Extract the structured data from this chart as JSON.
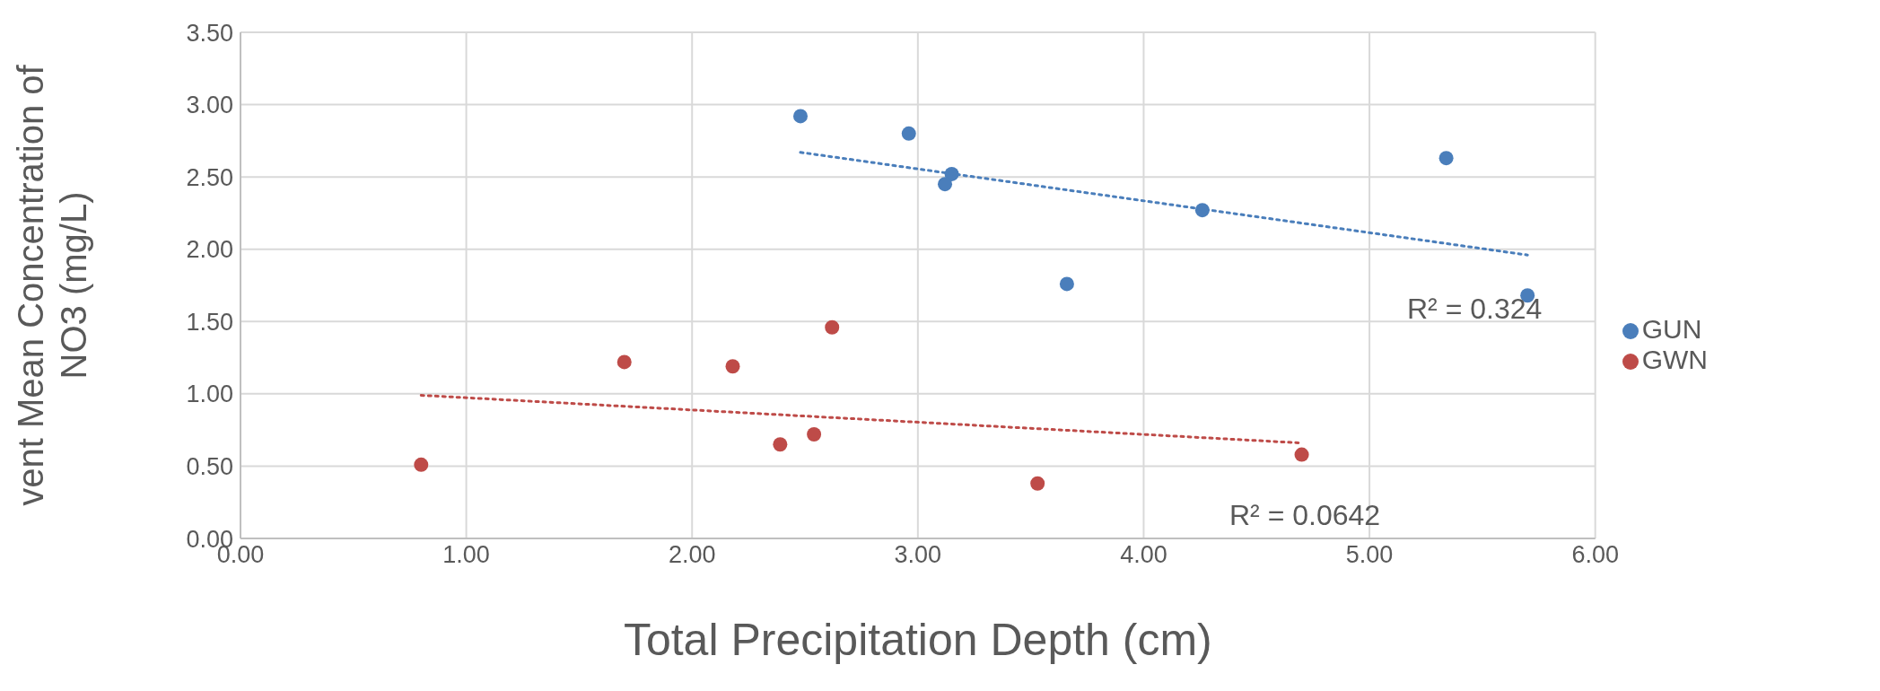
{
  "chart_data": {
    "type": "scatter",
    "xlabel": "Total Precipitation Depth (cm)",
    "ylabel": "vent Mean Concentration of NO3 (mg/L)",
    "xlim": [
      0,
      6
    ],
    "xticks": [
      {
        "value": 0,
        "label": "0.00"
      },
      {
        "value": 1,
        "label": "1.00"
      },
      {
        "value": 2,
        "label": "2.00"
      },
      {
        "value": 3,
        "label": "3.00"
      },
      {
        "value": 4,
        "label": "4.00"
      },
      {
        "value": 5,
        "label": "5.00"
      },
      {
        "value": 6,
        "label": "6.00"
      }
    ],
    "ylim": [
      0,
      3.5
    ],
    "yticks": [
      {
        "value": 0,
        "label": "0.00"
      },
      {
        "value": 0.5,
        "label": "0.50"
      },
      {
        "value": 1,
        "label": "1.00"
      },
      {
        "value": 1.5,
        "label": "1.50"
      },
      {
        "value": 2,
        "label": "2.00"
      },
      {
        "value": 2.5,
        "label": "2.50"
      },
      {
        "value": 3,
        "label": "3.00"
      },
      {
        "value": 3.5,
        "label": "3.50"
      }
    ],
    "grid": true,
    "legend": "right",
    "marker": "circle",
    "series": [
      {
        "name": "GUN",
        "color": "#4a7ebb",
        "x": [
          2.48,
          2.96,
          3.15,
          3.12,
          3.66,
          4.26,
          5.34,
          5.7
        ],
        "values": [
          2.92,
          2.8,
          2.52,
          2.45,
          1.76,
          2.27,
          2.63,
          1.68
        ]
      },
      {
        "name": "GWN",
        "color": "#be4b48",
        "x": [
          0.8,
          1.7,
          2.18,
          2.62,
          2.39,
          2.54,
          3.53,
          4.7
        ],
        "values": [
          0.51,
          1.22,
          1.19,
          1.46,
          0.65,
          0.72,
          0.38,
          0.58
        ]
      },
      {
        "type": "line",
        "color": "#4a7ebb",
        "line_style": "dotted",
        "marker": "none",
        "x": [
          2.48,
          5.7
        ],
        "values": [
          2.67,
          1.96
        ]
      },
      {
        "type": "line",
        "color": "#be4b48",
        "line_style": "dotted",
        "marker": "none",
        "x": [
          0.8,
          4.7
        ],
        "values": [
          0.99,
          0.66
        ]
      }
    ],
    "annotations": [
      "R² = 0.324",
      "R² = 0.0642"
    ]
  }
}
